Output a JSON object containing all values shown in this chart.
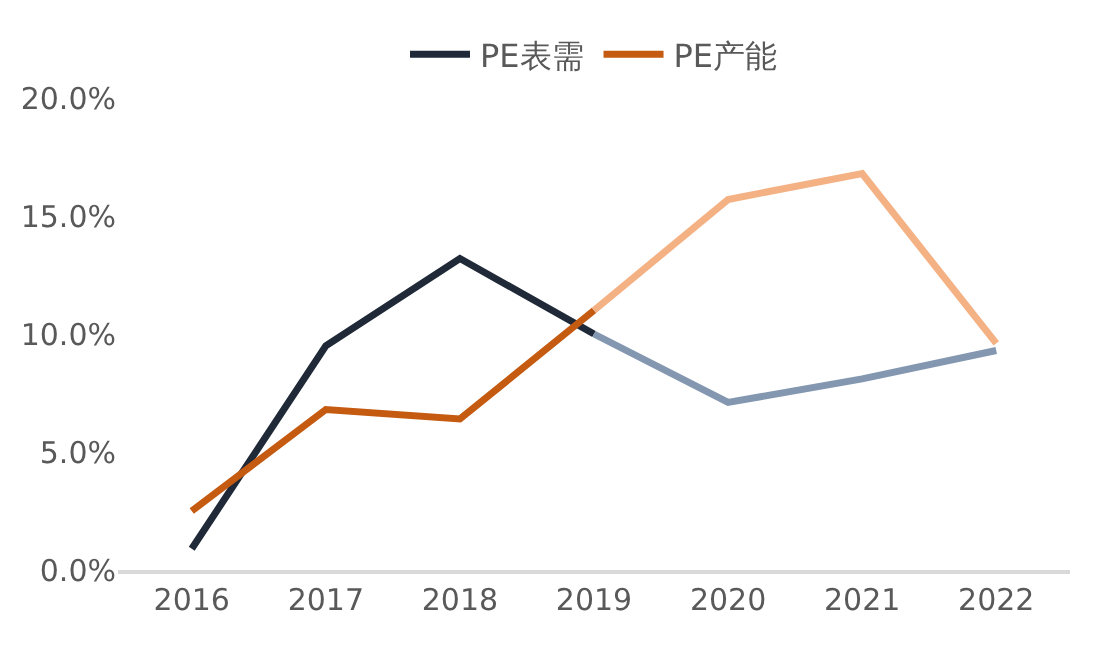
{
  "chart_data": {
    "type": "line",
    "categories": [
      "2016",
      "2017",
      "2018",
      "2019",
      "2020",
      "2021",
      "2022"
    ],
    "series": [
      {
        "name": "PE表需",
        "color": "#1f2937",
        "values": [
          0.9,
          9.5,
          13.2,
          10.0,
          null,
          null,
          null
        ]
      },
      {
        "name": "PE产能",
        "color": "#c55a11",
        "values": [
          2.5,
          6.8,
          6.4,
          11.0,
          null,
          null,
          null
        ]
      },
      {
        "color": "#8497b0",
        "values": [
          null,
          null,
          null,
          10.0,
          7.1,
          8.1,
          9.3
        ]
      },
      {
        "color": "#f4b183",
        "values": [
          null,
          null,
          null,
          11.0,
          15.7,
          16.8,
          9.6
        ]
      }
    ],
    "ylim": [
      0,
      20
    ],
    "yticks": [
      {
        "value": 0,
        "label": "0.0%"
      },
      {
        "value": 5,
        "label": "5.0%"
      },
      {
        "value": 10,
        "label": "10.0%"
      },
      {
        "value": 15,
        "label": "15.0%"
      },
      {
        "value": 20,
        "label": "20.0%"
      }
    ],
    "legend": "top",
    "marker": "none",
    "line_style": "solid"
  }
}
